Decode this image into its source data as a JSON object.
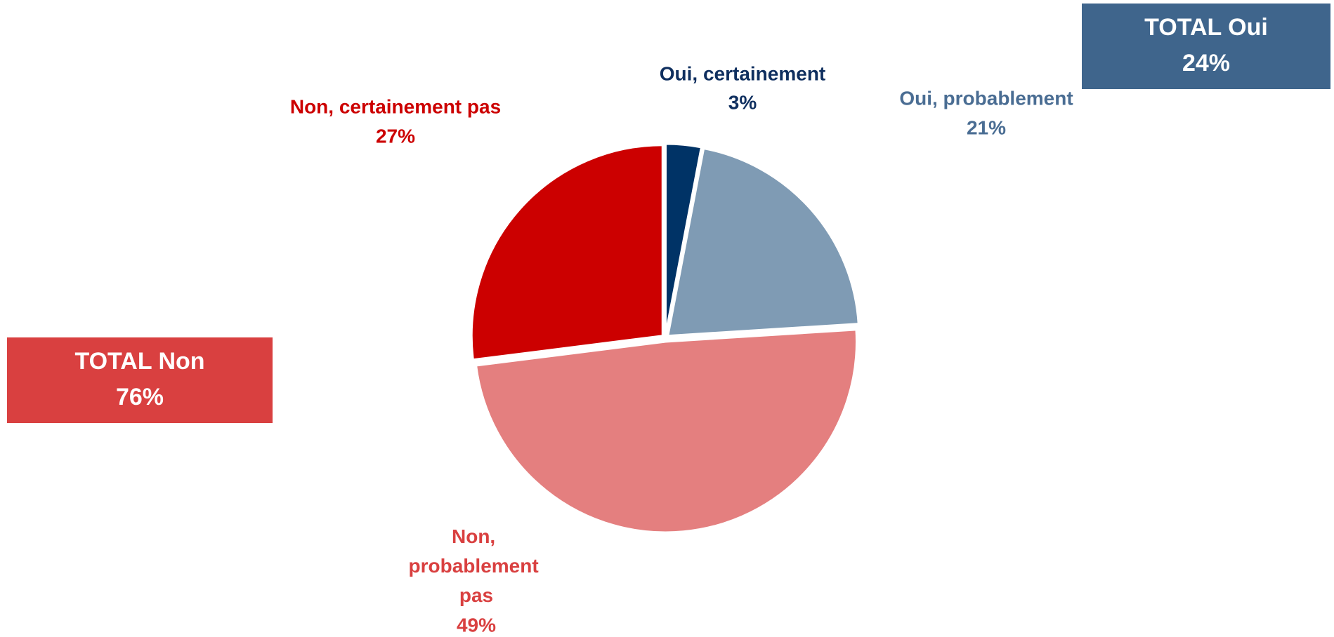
{
  "chart_data": {
    "type": "pie",
    "categories": [
      "Oui, certainement",
      "Oui, probablement",
      "Non, probablement pas",
      "Non, certainement pas"
    ],
    "values": [
      3,
      21,
      49,
      27
    ],
    "value_labels": [
      "3%",
      "21%",
      "49%",
      "27%"
    ],
    "colors": [
      "#003366",
      "#7f9bb4",
      "#e47f7f",
      "#cc0000"
    ],
    "label_colors": [
      "#0f2f5f",
      "#4a6d93",
      "#d94040",
      "#cc0000"
    ],
    "totals": [
      {
        "label": "TOTAL Oui",
        "value": 24,
        "value_label": "24%",
        "color": "#3f658c"
      },
      {
        "label": "TOTAL Non",
        "value": 76,
        "value_label": "76%",
        "color": "#d94040"
      }
    ]
  }
}
